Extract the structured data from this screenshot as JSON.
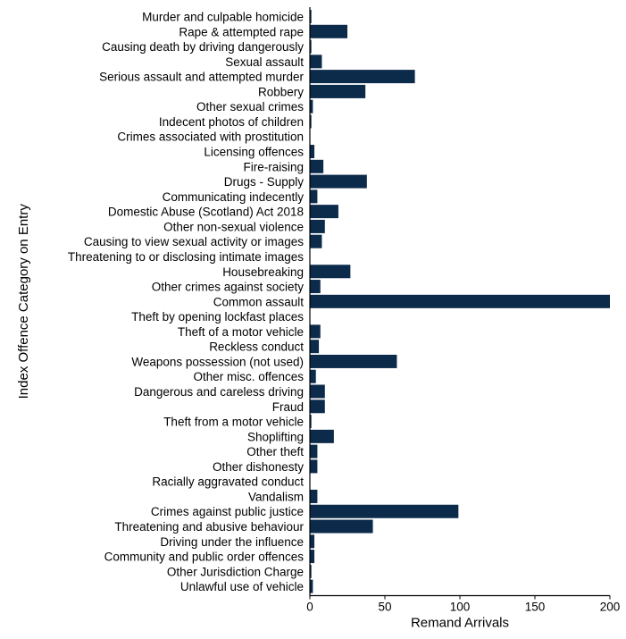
{
  "chart_data": {
    "type": "bar",
    "orientation": "horizontal",
    "categories": [
      "Murder and culpable homicide",
      "Rape & attempted rape",
      "Causing death by driving dangerously",
      "Sexual assault",
      "Serious assault and attempted murder",
      "Robbery",
      "Other sexual crimes",
      "Indecent photos of children",
      "Crimes associated with prostitution",
      "Licensing offences",
      "Fire-raising",
      "Drugs - Supply",
      "Communicating indecently",
      "Domestic Abuse (Scotland) Act 2018",
      "Other non-sexual violence",
      "Causing to view sexual activity or images",
      "Threatening to or disclosing intimate images",
      "Housebreaking",
      "Other crimes against society",
      "Common assault",
      "Theft by opening lockfast places",
      "Theft of a motor vehicle",
      "Reckless conduct",
      "Weapons possession (not used)",
      "Other misc. offences",
      "Dangerous and careless driving",
      "Fraud",
      "Theft from a motor vehicle",
      "Shoplifting",
      "Other theft",
      "Other dishonesty",
      "Racially aggravated conduct",
      "Vandalism",
      "Crimes against public justice",
      "Threatening and abusive behaviour",
      "Driving under the influence",
      "Community and public order offences",
      "Other Jurisdiction Charge",
      "Unlawful use of vehicle"
    ],
    "values": [
      1,
      25,
      1,
      8,
      70,
      37,
      2,
      1,
      0,
      3,
      9,
      38,
      5,
      19,
      10,
      8,
      0,
      27,
      7,
      200,
      0,
      7,
      6,
      58,
      4,
      10,
      10,
      1,
      16,
      5,
      5,
      0,
      5,
      99,
      42,
      3,
      3,
      1,
      2
    ],
    "xlabel": "Remand Arrivals",
    "ylabel": "Index Offence Category on Entry",
    "xlim": [
      0,
      200
    ],
    "x_ticks": [
      "0",
      "50",
      "100",
      "150",
      "200"
    ],
    "grid": false,
    "legend": "none",
    "bar_color": "#0c2a4a"
  }
}
